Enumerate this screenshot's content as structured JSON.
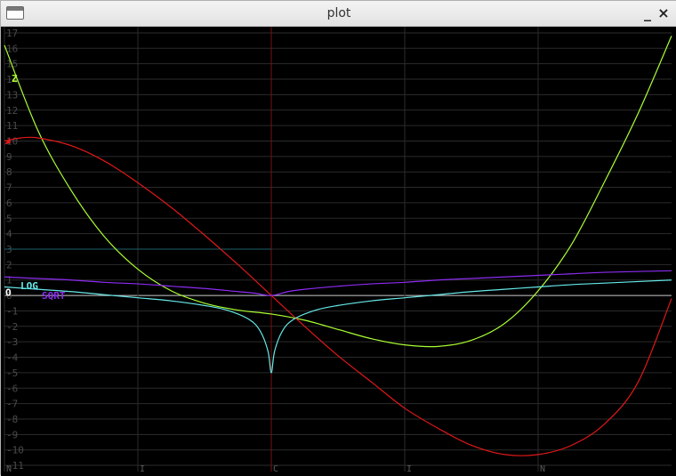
{
  "window": {
    "title": "plot",
    "minimize_glyph": "_",
    "close_glyph": "×"
  },
  "icons": {
    "app": "window-icon",
    "minimize": "minimize-icon",
    "close": "close-icon"
  },
  "colors": {
    "background": "#000000",
    "grid": "#2b2b2b",
    "axis": "#cccccc",
    "vline": "#7a1010",
    "hline": "#1f5f6a"
  },
  "chart_data": {
    "type": "line",
    "title": "",
    "xlabel": "",
    "ylabel": "",
    "xlim": [
      -3,
      3
    ],
    "ylim": [
      -11.4,
      17.4
    ],
    "grid": true,
    "y_ticks": [
      "17",
      "16",
      "15",
      "14",
      "13",
      "12",
      "11",
      "10",
      "9",
      "8",
      "7",
      "6",
      "5",
      "4",
      "3",
      "2",
      "1",
      "0",
      "-1",
      "-2",
      "-3",
      "-4",
      "-5",
      "-6",
      "-7",
      "-8",
      "-9",
      "-10",
      "-11"
    ],
    "x_ticks": [
      {
        "x": -3,
        "label": "N"
      },
      {
        "x": -1.8,
        "label": "I"
      },
      {
        "x": -0.6,
        "label": "C"
      },
      {
        "x": 0.6,
        "label": "I"
      },
      {
        "x": 1.8,
        "label": "N"
      }
    ],
    "vertical_marker_x": -0.6,
    "horizontal_marker": {
      "y": 3,
      "x_from": -3,
      "x_to": -0.6
    },
    "series": [
      {
        "name": "Z",
        "color": "#aaff33",
        "points": [
          [
            -3,
            16.2
          ],
          [
            -2.7,
            10.7
          ],
          [
            -2.4,
            6.8
          ],
          [
            -2.1,
            3.8
          ],
          [
            -1.8,
            1.7
          ],
          [
            -1.5,
            0.3
          ],
          [
            -1.2,
            -0.5
          ],
          [
            -0.9,
            -0.95
          ],
          [
            -0.6,
            -1.2
          ],
          [
            -0.3,
            -1.6
          ],
          [
            0,
            -2.2
          ],
          [
            0.3,
            -2.8
          ],
          [
            0.6,
            -3.2
          ],
          [
            0.9,
            -3.3
          ],
          [
            1.2,
            -2.9
          ],
          [
            1.5,
            -1.8
          ],
          [
            1.8,
            0.3
          ],
          [
            2.1,
            3.3
          ],
          [
            2.4,
            7.4
          ],
          [
            2.7,
            11.8
          ],
          [
            3,
            16.8
          ]
        ]
      },
      {
        "name": "",
        "color": "#e01818",
        "points": [
          [
            -3,
            10.0
          ],
          [
            -2.85,
            10.2
          ],
          [
            -2.7,
            10.2
          ],
          [
            -2.4,
            9.7
          ],
          [
            -2.1,
            8.7
          ],
          [
            -1.8,
            7.3
          ],
          [
            -1.5,
            5.7
          ],
          [
            -1.2,
            3.9
          ],
          [
            -0.9,
            2.0
          ],
          [
            -0.6,
            0.0
          ],
          [
            -0.3,
            -2.0
          ],
          [
            0,
            -3.9
          ],
          [
            0.3,
            -5.6
          ],
          [
            0.6,
            -7.3
          ],
          [
            0.9,
            -8.6
          ],
          [
            1.2,
            -9.7
          ],
          [
            1.5,
            -10.3
          ],
          [
            1.8,
            -10.3
          ],
          [
            2.1,
            -9.7
          ],
          [
            2.4,
            -8.3
          ],
          [
            2.7,
            -5.6
          ],
          [
            3,
            -0.2
          ]
        ]
      },
      {
        "name": "LOG",
        "color": "#66e8e8",
        "points": [
          [
            -3,
            0.55
          ],
          [
            -2.7,
            0.4
          ],
          [
            -2.4,
            0.25
          ],
          [
            -2.1,
            0.05
          ],
          [
            -1.8,
            -0.15
          ],
          [
            -1.5,
            -0.35
          ],
          [
            -1.2,
            -0.65
          ],
          [
            -1.0,
            -0.95
          ],
          [
            -0.8,
            -1.55
          ],
          [
            -0.7,
            -2.3
          ],
          [
            -0.63,
            -3.6
          ],
          [
            -0.6,
            -5.0
          ],
          [
            -0.57,
            -3.6
          ],
          [
            -0.5,
            -2.3
          ],
          [
            -0.4,
            -1.55
          ],
          [
            -0.2,
            -0.95
          ],
          [
            0,
            -0.65
          ],
          [
            0.3,
            -0.35
          ],
          [
            0.6,
            -0.15
          ],
          [
            0.9,
            0.05
          ],
          [
            1.2,
            0.25
          ],
          [
            1.5,
            0.4
          ],
          [
            1.8,
            0.55
          ],
          [
            2.1,
            0.7
          ],
          [
            2.4,
            0.8
          ],
          [
            3,
            1.0
          ]
        ]
      },
      {
        "name": "SQRT",
        "color": "#8c2cf0",
        "points": [
          [
            -3,
            1.2
          ],
          [
            -2.7,
            1.1
          ],
          [
            -2.4,
            1.0
          ],
          [
            -2.1,
            0.85
          ],
          [
            -1.8,
            0.75
          ],
          [
            -1.5,
            0.6
          ],
          [
            -1.2,
            0.45
          ],
          [
            -0.9,
            0.25
          ],
          [
            -0.75,
            0.15
          ],
          [
            -0.6,
            0
          ],
          [
            -0.45,
            0.25
          ],
          [
            -0.3,
            0.4
          ],
          [
            0,
            0.6
          ],
          [
            0.3,
            0.75
          ],
          [
            0.6,
            0.85
          ],
          [
            0.9,
            1.0
          ],
          [
            1.2,
            1.1
          ],
          [
            1.5,
            1.2
          ],
          [
            1.8,
            1.3
          ],
          [
            2.1,
            1.4
          ],
          [
            2.4,
            1.5
          ],
          [
            3,
            1.6
          ]
        ]
      }
    ],
    "labels": [
      {
        "text": "Z",
        "color": "#aaff33"
      },
      {
        "text": "LOG",
        "color": "#66e8e8"
      },
      {
        "text": "SQRT",
        "color": "#8c2cf0"
      },
      {
        "text": "O",
        "color": "#ffffff"
      }
    ]
  }
}
